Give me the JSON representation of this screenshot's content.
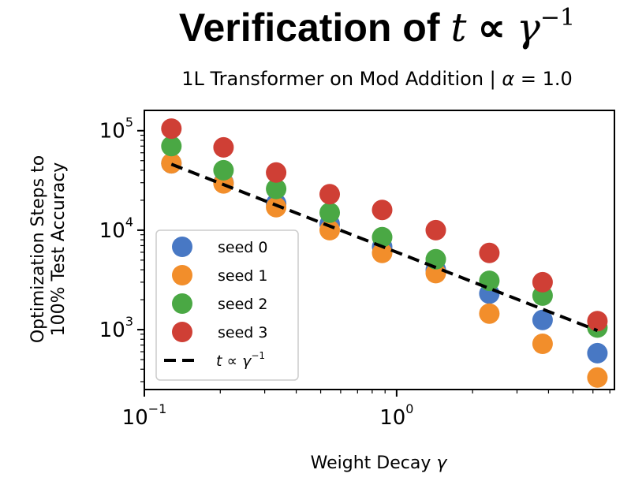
{
  "chart_data": {
    "type": "scatter",
    "title": "Verification of t ∝ γ⁻¹",
    "subtitle": "1L Transformer on Mod Addition | α = 1.0",
    "xlabel": "Weight Decay γ",
    "ylabel": "Optimization Steps to 100% Test Accuracy",
    "xscale": "log",
    "yscale": "log",
    "xlim": [
      0.1,
      7.3
    ],
    "ylim": [
      250,
      160000
    ],
    "xticks": [
      {
        "value": 0.1,
        "base": "10",
        "exp": "−1"
      },
      {
        "value": 1,
        "base": "10",
        "exp": "0"
      }
    ],
    "yticks": [
      {
        "value": 1000,
        "base": "10",
        "exp": "3"
      },
      {
        "value": 10000,
        "base": "10",
        "exp": "4"
      },
      {
        "value": 100000,
        "base": "10",
        "exp": "5"
      }
    ],
    "x": [
      0.128,
      0.206,
      0.333,
      0.543,
      0.876,
      1.43,
      2.33,
      3.79,
      6.25
    ],
    "series": [
      {
        "name": "seed 0",
        "color": "#4878c4",
        "values": [
          47000,
          30000,
          18500,
          11500,
          6800,
          4000,
          2300,
          1250,
          580
        ]
      },
      {
        "name": "seed 1",
        "color": "#f28e2b",
        "values": [
          47000,
          29500,
          17000,
          10000,
          5900,
          3700,
          1450,
          720,
          330
        ]
      },
      {
        "name": "seed 2",
        "color": "#4aa844",
        "values": [
          70000,
          40000,
          26000,
          15000,
          8500,
          5100,
          3100,
          2200,
          1050
        ]
      },
      {
        "name": "seed 3",
        "color": "#cf3f35",
        "values": [
          105000,
          68000,
          38000,
          23000,
          16000,
          10000,
          5900,
          3000,
          1220
        ]
      }
    ],
    "fit_line": {
      "name": "t ∝ γ⁻¹",
      "x": [
        0.128,
        6.25
      ],
      "y": [
        46000,
        980
      ],
      "color": "#000000",
      "style": "dashed"
    },
    "legend": {
      "placement": "lower-left"
    },
    "grid": false
  }
}
